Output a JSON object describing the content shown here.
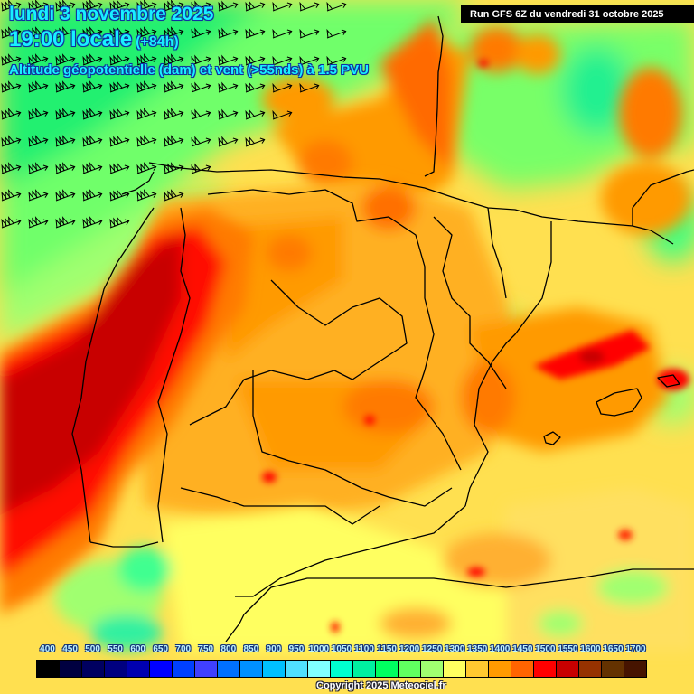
{
  "header": {
    "date": "lundi 3 novembre 2025",
    "time": "19:00 locale",
    "lead": "(+84h)",
    "field": "Altitude géopotentielle (dam) et vent (>55nds) à 1.5 PVU",
    "run": "Run GFS 6Z du vendredi 31 octobre 2025"
  },
  "legend": {
    "unit": "dam",
    "ticks": [
      "400",
      "450",
      "500",
      "550",
      "600",
      "650",
      "700",
      "750",
      "800",
      "850",
      "900",
      "950",
      "1000",
      "1050",
      "1100",
      "1150",
      "1200",
      "1250",
      "1300",
      "1350",
      "1400",
      "1450",
      "1500",
      "1550",
      "1600",
      "1650",
      "1700"
    ],
    "colors": [
      "#000000",
      "#000040",
      "#000060",
      "#000080",
      "#0000b0",
      "#0000ff",
      "#0040ff",
      "#4040ff",
      "#0070ff",
      "#0090ff",
      "#00c0ff",
      "#50e0ff",
      "#80ffff",
      "#00ffd0",
      "#00f0a0",
      "#00ff60",
      "#60ff60",
      "#a0ff70",
      "#ffff60",
      "#ffc830",
      "#ff9a00",
      "#ff6400",
      "#ff0000",
      "#c80000",
      "#963200",
      "#643200",
      "#461400"
    ]
  },
  "footer": {
    "copyright": "Copyright 2025 Meteociel.fr"
  },
  "map": {
    "region": "Iberian Peninsula and Bay of Biscay",
    "wind_barb_threshold": ">55nds",
    "features": [
      "Spain",
      "Portugal",
      "southern France",
      "Balearic Islands",
      "northern Morocco/Algeria coast"
    ],
    "max_region_color": "#c80000",
    "min_region_color": "#00ff60"
  }
}
